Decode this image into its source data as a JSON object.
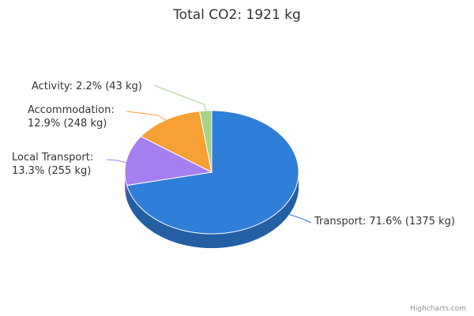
{
  "chart_data": {
    "type": "pie",
    "title": "Total CO2: 1921 kg",
    "categories": [
      "Transport:",
      "Local Transport:",
      "Accommodation:",
      "Activity:"
    ],
    "values": [
      1375,
      255,
      248,
      43
    ],
    "value_labels": [
      "71.6% (1375 kg)",
      "13.3% (255 kg)",
      "12.9% (248 kg)",
      "2.2% (43 kg)"
    ],
    "colors": [
      "#2f7ed8",
      "#a57ef0",
      "#f7a035",
      "#a6d28a"
    ],
    "credits": "Highcharts.com"
  }
}
